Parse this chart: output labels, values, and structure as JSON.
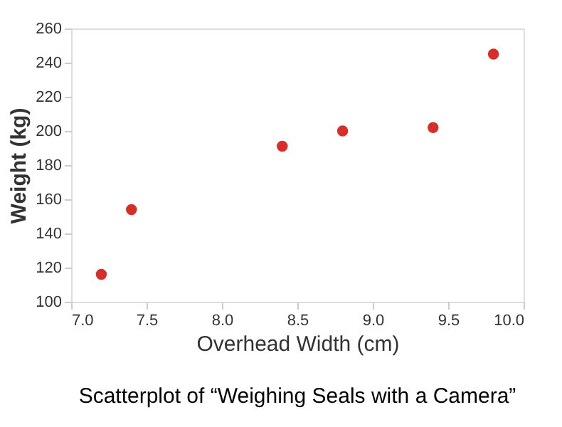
{
  "chart_data": {
    "type": "scatter",
    "xlabel": "Overhead Width (cm)",
    "ylabel": "Weight (kg)",
    "x": [
      7.2,
      7.4,
      8.4,
      8.8,
      9.4,
      9.8
    ],
    "series": [
      {
        "color": "#d62f2a",
        "values": [
          116,
          154,
          191,
          200,
          202,
          245
        ]
      }
    ],
    "xlim": [
      7.0,
      10.0
    ],
    "xticks": [
      {
        "value": 7.0,
        "label": "7.0"
      },
      7.5,
      {
        "value": 8.0,
        "label": "8.0"
      },
      8.5,
      {
        "value": 9.0,
        "label": "9.0"
      },
      9.5,
      {
        "value": 10.0,
        "label": "10.0"
      }
    ],
    "ylim": [
      100,
      260
    ],
    "yticks": [
      100,
      120,
      140,
      160,
      180,
      200,
      220,
      240,
      260
    ],
    "grid": false,
    "annotations": [
      "Scatterplot of “Weighing Seals with a Camera”"
    ]
  }
}
